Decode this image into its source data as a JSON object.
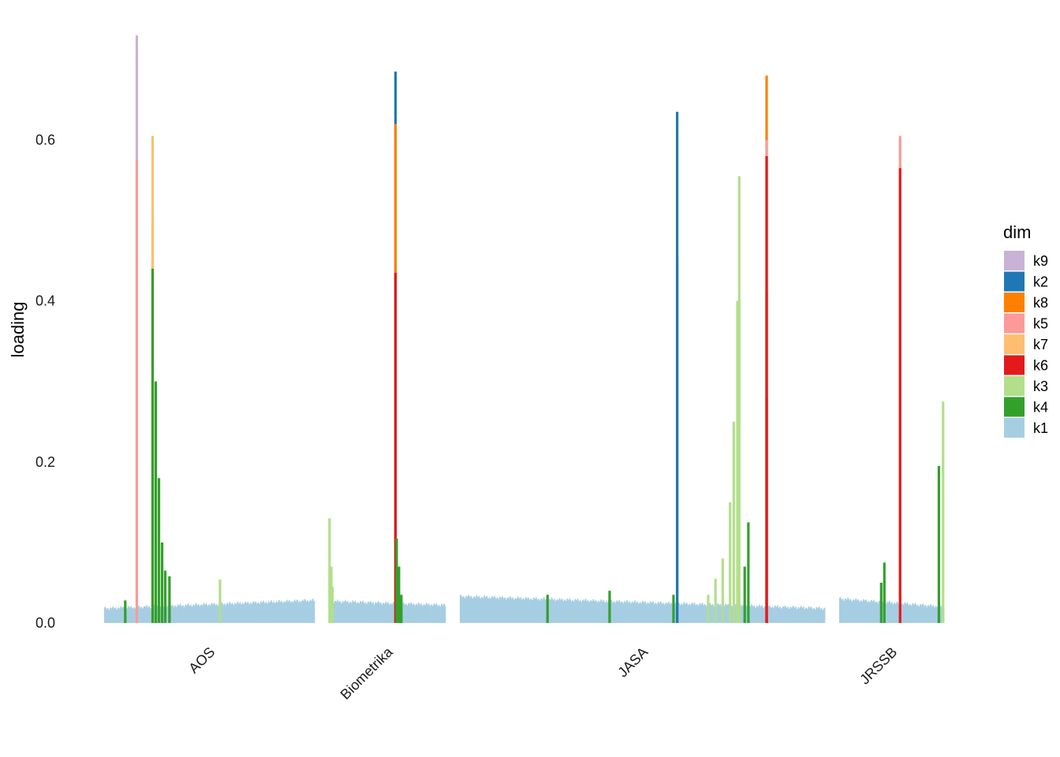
{
  "chart_data": {
    "type": "bar",
    "ylabel": "loading",
    "ylim": [
      0,
      0.72
    ],
    "yticks": [
      0.0,
      0.2,
      0.4,
      0.6
    ],
    "ytick_labels": [
      "0.0",
      "0.2",
      "0.4",
      "0.6"
    ],
    "grid": false,
    "legend": {
      "title": "dim",
      "placement": "right",
      "entries": [
        {
          "label": "k9",
          "color": "#CAB2D6"
        },
        {
          "label": "k2",
          "color": "#1F78B4"
        },
        {
          "label": "k8",
          "color": "#FF7F00"
        },
        {
          "label": "k5",
          "color": "#FB9A99"
        },
        {
          "label": "k7",
          "color": "#FDBF6F"
        },
        {
          "label": "k6",
          "color": "#E31A1C"
        },
        {
          "label": "k3",
          "color": "#B2DF8A"
        },
        {
          "label": "k4",
          "color": "#33A02C"
        },
        {
          "label": "k1",
          "color": "#A6CEE3"
        }
      ]
    },
    "panels": [
      {
        "label": "AOS",
        "n_items": 300,
        "baseline": {
          "dim": "k1",
          "start": 0.018,
          "end": 0.028
        },
        "peaks": [
          {
            "pos": 0.1,
            "dim": "k4",
            "value": 0.028
          },
          {
            "pos": 0.155,
            "dim": "k9",
            "value": 0.73
          },
          {
            "pos": 0.155,
            "dim": "k5",
            "value": 0.575
          },
          {
            "pos": 0.23,
            "dim": "k7",
            "value": 0.605
          },
          {
            "pos": 0.23,
            "dim": "k7",
            "value": 0.5
          },
          {
            "pos": 0.23,
            "dim": "k4",
            "value": 0.44
          },
          {
            "pos": 0.245,
            "dim": "k4",
            "value": 0.3
          },
          {
            "pos": 0.26,
            "dim": "k4",
            "value": 0.18
          },
          {
            "pos": 0.275,
            "dim": "k4",
            "value": 0.1
          },
          {
            "pos": 0.29,
            "dim": "k4",
            "value": 0.065
          },
          {
            "pos": 0.31,
            "dim": "k4",
            "value": 0.058
          },
          {
            "pos": 0.55,
            "dim": "k3",
            "value": 0.054
          }
        ]
      },
      {
        "label": "Biometrika",
        "n_items": 170,
        "baseline": {
          "dim": "k1",
          "start": 0.027,
          "end": 0.022
        },
        "peaks": [
          {
            "pos": 0.005,
            "dim": "k3",
            "value": 0.13
          },
          {
            "pos": 0.02,
            "dim": "k3",
            "value": 0.07
          },
          {
            "pos": 0.03,
            "dim": "k3",
            "value": 0.045
          },
          {
            "pos": 0.57,
            "dim": "k2",
            "value": 0.685
          },
          {
            "pos": 0.57,
            "dim": "k8",
            "value": 0.62
          },
          {
            "pos": 0.57,
            "dim": "k6",
            "value": 0.435
          },
          {
            "pos": 0.58,
            "dim": "k4",
            "value": 0.105
          },
          {
            "pos": 0.6,
            "dim": "k4",
            "value": 0.07
          },
          {
            "pos": 0.62,
            "dim": "k4",
            "value": 0.035
          }
        ]
      },
      {
        "label": "JASA",
        "n_items": 520,
        "baseline": {
          "dim": "k1",
          "start": 0.033,
          "end": 0.018
        },
        "peaks": [
          {
            "pos": 0.24,
            "dim": "k4",
            "value": 0.035
          },
          {
            "pos": 0.41,
            "dim": "k4",
            "value": 0.04
          },
          {
            "pos": 0.585,
            "dim": "k4",
            "value": 0.035
          },
          {
            "pos": 0.595,
            "dim": "k2",
            "value": 0.635
          },
          {
            "pos": 0.595,
            "dim": "k2",
            "value": 0.455
          },
          {
            "pos": 0.68,
            "dim": "k3",
            "value": 0.035
          },
          {
            "pos": 0.7,
            "dim": "k3",
            "value": 0.055
          },
          {
            "pos": 0.72,
            "dim": "k3",
            "value": 0.08
          },
          {
            "pos": 0.74,
            "dim": "k3",
            "value": 0.15
          },
          {
            "pos": 0.75,
            "dim": "k3",
            "value": 0.25
          },
          {
            "pos": 0.76,
            "dim": "k3",
            "value": 0.4
          },
          {
            "pos": 0.765,
            "dim": "k3",
            "value": 0.555
          },
          {
            "pos": 0.78,
            "dim": "k4",
            "value": 0.07
          },
          {
            "pos": 0.79,
            "dim": "k4",
            "value": 0.125
          },
          {
            "pos": 0.84,
            "dim": "k8",
            "value": 0.68
          },
          {
            "pos": 0.84,
            "dim": "k5",
            "value": 0.6
          },
          {
            "pos": 0.84,
            "dim": "k6",
            "value": 0.58
          },
          {
            "pos": 0.84,
            "dim": "k6",
            "value": 0.41
          },
          {
            "pos": 0.84,
            "dim": "k6",
            "value": 0.28
          }
        ]
      },
      {
        "label": "JRSSB",
        "n_items": 150,
        "baseline": {
          "dim": "k1",
          "start": 0.03,
          "end": 0.02
        },
        "peaks": [
          {
            "pos": 0.4,
            "dim": "k4",
            "value": 0.05
          },
          {
            "pos": 0.43,
            "dim": "k4",
            "value": 0.075
          },
          {
            "pos": 0.58,
            "dim": "k5",
            "value": 0.605
          },
          {
            "pos": 0.58,
            "dim": "k6",
            "value": 0.565
          },
          {
            "pos": 0.95,
            "dim": "k4",
            "value": 0.195
          },
          {
            "pos": 0.99,
            "dim": "k3",
            "value": 0.275
          }
        ]
      }
    ]
  }
}
